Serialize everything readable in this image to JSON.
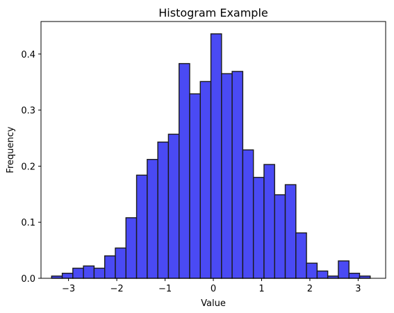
{
  "chart_data": {
    "type": "bar",
    "title": "Histogram Example",
    "xlabel": "Value",
    "ylabel": "Frequency",
    "xlim": [
      -3.57,
      3.57
    ],
    "ylim": [
      0,
      0.458
    ],
    "xticks": [
      -3,
      -2,
      -1,
      0,
      1,
      2,
      3
    ],
    "xtick_labels": [
      "−3",
      "−2",
      "−1",
      "0",
      "1",
      "2",
      "3"
    ],
    "yticks": [
      0.0,
      0.1,
      0.2,
      0.3,
      0.4
    ],
    "ytick_labels": [
      "0.0",
      "0.1",
      "0.2",
      "0.3",
      "0.4"
    ],
    "bin_edges": [
      -3.35,
      -3.13,
      -2.91,
      -2.69,
      -2.47,
      -2.25,
      -2.03,
      -1.81,
      -1.59,
      -1.37,
      -1.15,
      -0.93,
      -0.71,
      -0.49,
      -0.27,
      -0.05,
      0.17,
      0.39,
      0.61,
      0.83,
      1.05,
      1.27,
      1.49,
      1.71,
      1.93,
      2.15,
      2.37,
      2.59,
      2.81,
      3.03,
      3.25
    ],
    "values": [
      0.004,
      0.009,
      0.018,
      0.022,
      0.018,
      0.04,
      0.054,
      0.108,
      0.184,
      0.212,
      0.243,
      0.257,
      0.383,
      0.329,
      0.351,
      0.436,
      0.365,
      0.369,
      0.229,
      0.18,
      0.203,
      0.149,
      0.167,
      0.081,
      0.027,
      0.013,
      0.004,
      0.031,
      0.009,
      0.004
    ],
    "bar_color": "#4a4af4",
    "edge_color": "#1a1a1a",
    "grid": false
  }
}
